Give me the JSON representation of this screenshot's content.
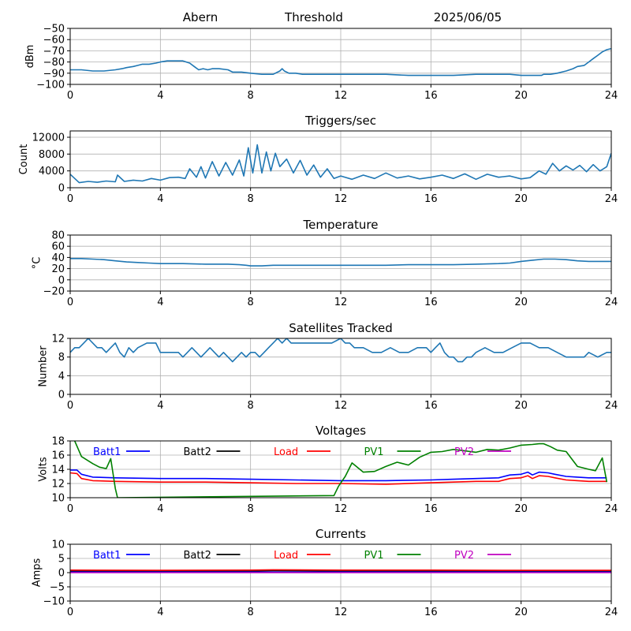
{
  "header": {
    "station": "Abern",
    "mode": "Threshold",
    "date": "2025/06/05"
  },
  "colors": {
    "series": "#1f77b4",
    "grid": "#b0b0b0",
    "batt1": "#0000ff",
    "batt2": "#000000",
    "load": "#ff0000",
    "pv1": "#008000",
    "pv2": "#bf00bf"
  },
  "chart_data": [
    {
      "type": "line",
      "title": "",
      "xlabel": "",
      "ylabel": "dBm",
      "xlim": [
        0,
        24
      ],
      "ylim": [
        -100,
        -50
      ],
      "xticks": [
        0,
        4,
        8,
        12,
        16,
        20,
        24
      ],
      "yticks": [
        -100,
        -90,
        -80,
        -70,
        -60,
        -50
      ],
      "grid": true,
      "series": [
        {
          "color": "#1f77b4",
          "x": [
            0,
            0.5,
            1,
            1.5,
            2,
            2.3,
            2.5,
            2.8,
            3,
            3.2,
            3.5,
            3.8,
            4,
            4.3,
            4.6,
            5,
            5.3,
            5.5,
            5.7,
            5.9,
            6.1,
            6.3,
            6.6,
            7,
            7.2,
            7.4,
            7.6,
            8,
            8.5,
            9,
            9.3,
            9.4,
            9.5,
            9.7,
            10,
            10.3,
            11,
            12,
            13,
            14,
            15,
            16,
            17,
            18,
            19,
            19.5,
            20,
            20.5,
            20.9,
            21,
            21.3,
            21.6,
            21.8,
            22,
            22.3,
            22.5,
            22.8,
            23,
            23.2,
            23.4,
            23.6,
            23.8,
            24
          ],
          "y": [
            -87,
            -87,
            -88,
            -88,
            -87,
            -86,
            -85,
            -84,
            -83,
            -82,
            -82,
            -81,
            -80,
            -79,
            -79,
            -79,
            -81,
            -84,
            -87,
            -86,
            -87,
            -86,
            -86,
            -87,
            -89,
            -89,
            -89,
            -90,
            -91,
            -91,
            -88,
            -86,
            -88,
            -90,
            -90,
            -91,
            -91,
            -91,
            -91,
            -91,
            -92,
            -92,
            -92,
            -91,
            -91,
            -91,
            -92,
            -92,
            -92,
            -91,
            -91,
            -90,
            -89,
            -88,
            -86,
            -84,
            -83,
            -80,
            -77,
            -74,
            -71,
            -69,
            -68
          ]
        }
      ]
    },
    {
      "type": "line",
      "title": "Triggers/sec",
      "xlabel": "",
      "ylabel": "Count",
      "xlim": [
        0,
        24
      ],
      "ylim": [
        0,
        13500
      ],
      "xticks": [
        0,
        4,
        8,
        12,
        16,
        20,
        24
      ],
      "yticks": [
        0,
        4000,
        8000,
        12000
      ],
      "grid": true,
      "series": [
        {
          "color": "#1f77b4",
          "x": [
            0,
            0.4,
            0.8,
            1.2,
            1.6,
            2,
            2.1,
            2.4,
            2.8,
            3.2,
            3.6,
            4,
            4.4,
            4.8,
            5.1,
            5.3,
            5.6,
            5.8,
            6,
            6.3,
            6.6,
            6.9,
            7.2,
            7.5,
            7.7,
            7.9,
            8.1,
            8.3,
            8.5,
            8.7,
            8.9,
            9.1,
            9.3,
            9.6,
            9.9,
            10.2,
            10.5,
            10.8,
            11.1,
            11.4,
            11.7,
            12,
            12.5,
            13,
            13.5,
            14,
            14.5,
            15,
            15.5,
            16,
            16.5,
            17,
            17.5,
            18,
            18.5,
            19,
            19.5,
            20,
            20.4,
            20.8,
            21.1,
            21.4,
            21.7,
            22,
            22.3,
            22.6,
            22.9,
            23.2,
            23.5,
            23.8,
            24
          ],
          "y": [
            3200,
            1200,
            1500,
            1300,
            1600,
            1400,
            3000,
            1500,
            1800,
            1600,
            2200,
            1800,
            2400,
            2500,
            2200,
            4500,
            2500,
            5000,
            2300,
            6200,
            2800,
            6000,
            3000,
            6600,
            2800,
            9500,
            3500,
            10200,
            3500,
            8500,
            4000,
            8200,
            5000,
            6800,
            3500,
            6500,
            3000,
            5400,
            2500,
            4500,
            2200,
            2800,
            2000,
            3000,
            2200,
            3500,
            2300,
            2800,
            2100,
            2500,
            3000,
            2200,
            3300,
            2000,
            3200,
            2500,
            2800,
            2100,
            2400,
            4000,
            3200,
            5800,
            4000,
            5200,
            4200,
            5300,
            3800,
            5500,
            4000,
            5000,
            8200
          ]
        }
      ]
    },
    {
      "type": "line",
      "title": "Temperature",
      "xlabel": "",
      "ylabel": "°C",
      "xlim": [
        0,
        24
      ],
      "ylim": [
        -20,
        80
      ],
      "xticks": [
        0,
        4,
        8,
        12,
        16,
        20,
        24
      ],
      "yticks": [
        -20,
        0,
        20,
        40,
        60,
        80
      ],
      "grid": true,
      "series": [
        {
          "color": "#1f77b4",
          "x": [
            0,
            0.5,
            1,
            1.5,
            2,
            2.5,
            3,
            3.5,
            4,
            5,
            6,
            7,
            7.5,
            7.8,
            8,
            8.2,
            8.5,
            9,
            10,
            11,
            12,
            13,
            14,
            15,
            16,
            17,
            18,
            19,
            19.5,
            20,
            20.5,
            21,
            21.5,
            22,
            22.5,
            23,
            24
          ],
          "y": [
            38,
            38,
            37,
            36,
            34,
            32,
            31,
            30,
            29,
            29,
            28,
            28,
            27,
            26,
            25,
            25,
            25,
            26,
            26,
            26,
            26,
            26,
            26,
            27,
            27,
            27,
            28,
            29,
            30,
            33,
            35,
            37,
            37,
            36,
            34,
            33,
            33
          ]
        }
      ]
    },
    {
      "type": "line",
      "title": "Satellites Tracked",
      "xlabel": "",
      "ylabel": "Number",
      "xlim": [
        0,
        24
      ],
      "ylim": [
        0,
        12
      ],
      "xticks": [
        0,
        4,
        8,
        12,
        16,
        20,
        24
      ],
      "yticks": [
        0,
        4,
        8,
        12
      ],
      "grid": true,
      "series": [
        {
          "color": "#1f77b4",
          "x": [
            0,
            0.2,
            0.4,
            0.6,
            0.8,
            1,
            1.2,
            1.4,
            1.6,
            1.8,
            2,
            2.2,
            2.4,
            2.6,
            2.8,
            3,
            3.4,
            3.8,
            4,
            4.4,
            4.8,
            5,
            5.2,
            5.4,
            5.6,
            5.8,
            6,
            6.2,
            6.4,
            6.6,
            6.8,
            7,
            7.2,
            7.4,
            7.6,
            7.8,
            8,
            8.2,
            8.4,
            8.6,
            8.8,
            9,
            9.2,
            9.4,
            9.6,
            9.8,
            10,
            10.4,
            10.8,
            11.2,
            11.6,
            12,
            12.2,
            12.4,
            12.6,
            12.8,
            13,
            13.4,
            13.8,
            14.2,
            14.6,
            15,
            15.4,
            15.8,
            16,
            16.2,
            16.4,
            16.6,
            16.8,
            17,
            17.2,
            17.4,
            17.6,
            17.8,
            18,
            18.4,
            18.8,
            19.2,
            19.6,
            20,
            20.4,
            20.8,
            21.2,
            21.6,
            22,
            22.4,
            22.8,
            23,
            23.4,
            23.8,
            24
          ],
          "y": [
            9,
            10,
            10,
            11,
            12,
            11,
            10,
            10,
            9,
            10,
            11,
            9,
            8,
            10,
            9,
            10,
            11,
            11,
            9,
            9,
            9,
            8,
            9,
            10,
            9,
            8,
            9,
            10,
            9,
            8,
            9,
            8,
            7,
            8,
            9,
            8,
            9,
            9,
            8,
            9,
            10,
            11,
            12,
            11,
            12,
            11,
            11,
            11,
            11,
            11,
            11,
            12,
            11,
            11,
            10,
            10,
            10,
            9,
            9,
            10,
            9,
            9,
            10,
            10,
            9,
            10,
            11,
            9,
            8,
            8,
            7,
            7,
            8,
            8,
            9,
            10,
            9,
            9,
            10,
            11,
            11,
            10,
            10,
            9,
            8,
            8,
            8,
            9,
            8,
            9,
            9
          ]
        }
      ]
    },
    {
      "type": "line",
      "title": "Voltages",
      "xlabel": "",
      "ylabel": "Volts",
      "xlim": [
        0,
        24
      ],
      "ylim": [
        10,
        18
      ],
      "xticks": [
        0,
        4,
        8,
        12,
        16,
        20,
        24
      ],
      "yticks": [
        10,
        12,
        14,
        16,
        18
      ],
      "grid": true,
      "legend": [
        {
          "name": "Batt1",
          "color": "#0000ff"
        },
        {
          "name": "Batt2",
          "color": "#000000"
        },
        {
          "name": "Load",
          "color": "#ff0000"
        },
        {
          "name": "PV1",
          "color": "#008000"
        },
        {
          "name": "PV2",
          "color": "#bf00bf"
        }
      ],
      "series": [
        {
          "name": "Batt1",
          "color": "#0000ff",
          "x": [
            0,
            0.3,
            0.5,
            1,
            2,
            4,
            6,
            8,
            10,
            12,
            14,
            16,
            17,
            18,
            19,
            19.5,
            20,
            20.3,
            20.5,
            20.8,
            21.2,
            21.5,
            22,
            22.5,
            23,
            23.5,
            23.8
          ],
          "y": [
            13.9,
            13.9,
            13.3,
            12.9,
            12.8,
            12.7,
            12.7,
            12.6,
            12.5,
            12.4,
            12.4,
            12.5,
            12.6,
            12.7,
            12.8,
            13.2,
            13.3,
            13.6,
            13.2,
            13.6,
            13.5,
            13.3,
            13.0,
            12.9,
            12.8,
            12.8,
            12.8
          ]
        },
        {
          "name": "Load",
          "color": "#ff0000",
          "x": [
            0,
            0.3,
            0.5,
            1,
            2,
            4,
            6,
            8,
            10,
            12,
            14,
            16,
            17,
            18,
            19,
            19.5,
            20,
            20.3,
            20.5,
            20.8,
            21.2,
            21.5,
            22,
            22.5,
            23,
            23.5,
            23.8
          ],
          "y": [
            13.5,
            13.4,
            12.7,
            12.4,
            12.3,
            12.2,
            12.2,
            12.1,
            12.0,
            12.0,
            11.9,
            12.1,
            12.2,
            12.3,
            12.3,
            12.7,
            12.8,
            13.1,
            12.7,
            13.1,
            13.0,
            12.8,
            12.5,
            12.4,
            12.3,
            12.3,
            12.3
          ]
        },
        {
          "name": "PV1",
          "color": "#008000",
          "x": [
            0.2,
            0.5,
            1,
            1.3,
            1.6,
            1.8,
            2.0,
            2.1,
            11.7,
            11.9,
            12.2,
            12.5,
            13,
            13.5,
            14,
            14.5,
            15,
            15.5,
            16,
            16.5,
            17,
            17.5,
            18,
            18.5,
            19,
            19.5,
            20,
            20.5,
            20.8,
            21,
            21.3,
            21.6,
            22,
            22.5,
            23,
            23.3,
            23.6,
            23.8
          ],
          "y": [
            18.0,
            15.8,
            14.8,
            14.3,
            14.1,
            15.5,
            11.3,
            10.0,
            10.3,
            11.6,
            13.0,
            14.9,
            13.6,
            13.7,
            14.4,
            15.0,
            14.6,
            15.7,
            16.4,
            16.5,
            16.8,
            16.6,
            16.4,
            16.8,
            16.7,
            17.0,
            17.4,
            17.5,
            17.6,
            17.6,
            17.2,
            16.7,
            16.5,
            14.4,
            14.0,
            13.8,
            15.6,
            12.2
          ]
        }
      ]
    },
    {
      "type": "line",
      "title": "Currents",
      "xlabel": "",
      "ylabel": "Amps",
      "xlim": [
        0,
        24
      ],
      "ylim": [
        -10,
        10
      ],
      "xticks": [
        0,
        4,
        8,
        12,
        16,
        20,
        24
      ],
      "yticks": [
        -10,
        -5,
        0,
        5,
        10
      ],
      "grid": true,
      "legend": [
        {
          "name": "Batt1",
          "color": "#0000ff"
        },
        {
          "name": "Batt2",
          "color": "#000000"
        },
        {
          "name": "Load",
          "color": "#ff0000"
        },
        {
          "name": "PV1",
          "color": "#008000"
        },
        {
          "name": "PV2",
          "color": "#bf00bf"
        }
      ],
      "series": [
        {
          "name": "Batt2",
          "color": "#000000",
          "x": [
            0,
            4,
            8,
            9,
            12,
            16,
            20,
            24
          ],
          "y": [
            0.6,
            0.6,
            0.6,
            0.7,
            0.6,
            0.6,
            0.6,
            0.6
          ]
        },
        {
          "name": "Load",
          "color": "#ff0000",
          "x": [
            0,
            4,
            8,
            9,
            12,
            16,
            20,
            24
          ],
          "y": [
            0.9,
            0.8,
            0.9,
            1.0,
            0.9,
            0.9,
            0.8,
            0.8
          ]
        },
        {
          "name": "Batt1",
          "color": "#0000ff",
          "x": [
            0,
            4,
            8,
            12,
            16,
            20,
            24
          ],
          "y": [
            0.2,
            0.2,
            0.2,
            0.2,
            0.2,
            0.2,
            0.2
          ]
        },
        {
          "name": "PV2",
          "color": "#bf00bf",
          "x": [
            0,
            4,
            8,
            12,
            16,
            20,
            24
          ],
          "y": [
            0.0,
            0.0,
            0.0,
            0.0,
            0.0,
            0.0,
            0.0
          ]
        }
      ]
    }
  ]
}
